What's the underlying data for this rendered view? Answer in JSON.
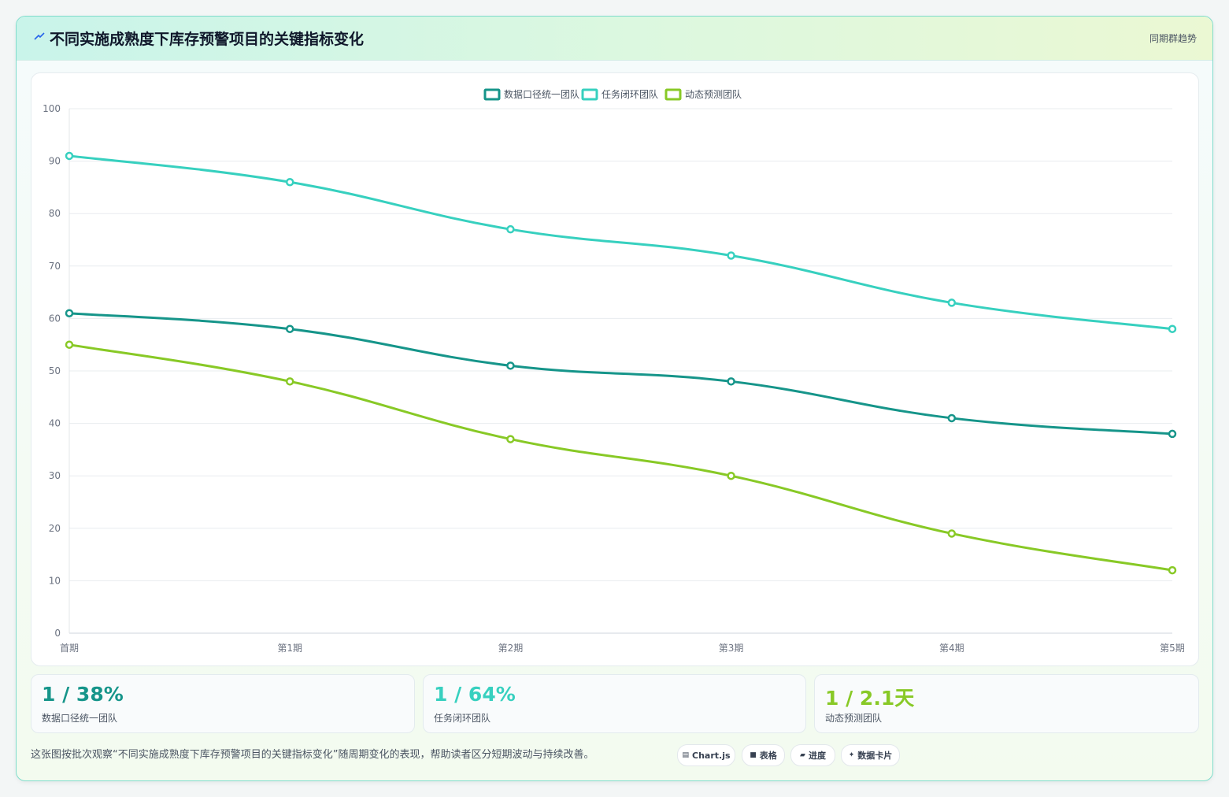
{
  "header": {
    "title": "不同实施成熟度下库存预警项目的关键指标变化",
    "tag": "同期群趋势"
  },
  "chart_data": {
    "type": "line",
    "categories": [
      "首期",
      "第1期",
      "第2期",
      "第3期",
      "第4期",
      "第5期"
    ],
    "series": [
      {
        "name": "数据口径统一团队",
        "color": "#16958a",
        "values": [
          61,
          58,
          51,
          48,
          41,
          38
        ]
      },
      {
        "name": "任务闭环团队",
        "color": "#37d0bf",
        "values": [
          91,
          86,
          77,
          72,
          63,
          58
        ]
      },
      {
        "name": "动态预测团队",
        "color": "#88c926",
        "values": [
          55,
          48,
          37,
          30,
          19,
          12
        ]
      }
    ],
    "ylim": [
      0,
      100
    ],
    "yticks": [
      0,
      10,
      20,
      30,
      40,
      50,
      60,
      70,
      80,
      90,
      100
    ],
    "legend_position": "top-center",
    "grid": true
  },
  "kpis": [
    {
      "value": "1 / 38%",
      "label": "数据口径统一团队",
      "color": "#16958a"
    },
    {
      "value": "1 / 64%",
      "label": "任务闭环团队",
      "color": "#37d0bf"
    },
    {
      "value": "1 / 2.1天",
      "label": "动态预测团队",
      "color": "#88c926"
    }
  ],
  "footer": {
    "note": "这张图按批次观察“不同实施成熟度下库存预警项目的关键指标变化”随周期变化的表现，帮助读者区分短期波动与持续改善。"
  },
  "chips": [
    {
      "icon": "▤",
      "label": "Chart.js"
    },
    {
      "icon": "■",
      "label": "表格"
    },
    {
      "icon": "▰",
      "label": "进度"
    },
    {
      "icon": "✦",
      "label": "数据卡片"
    }
  ]
}
